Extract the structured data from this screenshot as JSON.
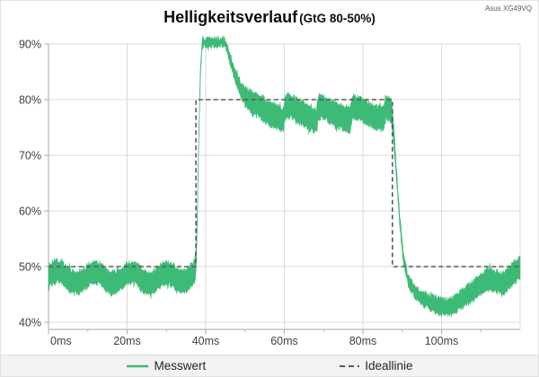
{
  "header": {
    "title": "Helligkeitsverlauf",
    "subtitle": "(GtG 80-50%)",
    "device": "Asus XG49VQ"
  },
  "legend": {
    "items": [
      {
        "label": "Messwert",
        "swatch": "solid-green-line"
      },
      {
        "label": "Ideallinie",
        "swatch": "dashed-gray-line"
      }
    ]
  },
  "colors": {
    "measured": "#3dba76",
    "ideal": "#595959",
    "grid": "#dadada",
    "axis": "#b7b7b7",
    "tick_text": "#404040",
    "legend_bg": "#f2f2f2"
  },
  "chart_data": {
    "type": "line",
    "title": "Helligkeitsverlauf",
    "subtitle": "(GtG 80-50%)",
    "device": "Asus XG49VQ",
    "xlabel": "",
    "ylabel": "",
    "x_unit": "ms",
    "y_unit": "%",
    "xlim": [
      0,
      120
    ],
    "ylim": [
      39,
      91
    ],
    "grid": true,
    "legend_position": "bottom",
    "x_ticks": [
      0,
      20,
      40,
      60,
      80,
      100
    ],
    "x_tick_labels": [
      "0ms",
      "20ms",
      "40ms",
      "60ms",
      "80ms",
      "100ms"
    ],
    "x_minor_ticks": [
      10,
      30,
      50,
      70,
      90,
      110
    ],
    "y_ticks": [
      90,
      80,
      70,
      60,
      50,
      40
    ],
    "y_tick_labels": [
      "90%",
      "80%",
      "70%",
      "60%",
      "50%",
      "40%"
    ],
    "series": [
      {
        "name": "Messwert",
        "style": "noisy-band",
        "color": "#3dba76",
        "noise": 0.5,
        "center_points": [
          [
            0,
            48.2
          ],
          [
            1.2,
            48.9
          ],
          [
            2.5,
            49.2
          ],
          [
            4,
            48.6
          ],
          [
            5.5,
            47.5
          ],
          [
            7,
            46.9
          ],
          [
            8.5,
            47.4
          ],
          [
            10,
            48.4
          ],
          [
            11.5,
            49.1
          ],
          [
            13,
            48.7
          ],
          [
            14.5,
            47.7
          ],
          [
            16,
            46.9
          ],
          [
            17.5,
            47.3
          ],
          [
            19,
            48.3
          ],
          [
            20.5,
            49.0
          ],
          [
            22,
            48.9
          ],
          [
            23.5,
            47.9
          ],
          [
            25,
            47.0
          ],
          [
            26.5,
            47.2
          ],
          [
            28,
            48.1
          ],
          [
            29.5,
            48.8
          ],
          [
            31,
            48.6
          ],
          [
            32.5,
            47.8
          ],
          [
            34,
            47.2
          ],
          [
            35.2,
            47.7
          ],
          [
            36.3,
            48.4
          ],
          [
            37.2,
            49.2
          ],
          [
            37.5,
            50.3
          ],
          [
            37.9,
            60
          ],
          [
            38.3,
            75
          ],
          [
            38.7,
            86
          ],
          [
            39.1,
            89.8
          ],
          [
            39.5,
            90.3
          ],
          [
            44.8,
            90.3
          ],
          [
            45.4,
            89.4
          ],
          [
            46.2,
            87.3
          ],
          [
            47.2,
            85.0
          ],
          [
            48.4,
            82.7
          ],
          [
            49.6,
            81.0
          ],
          [
            51,
            79.9
          ],
          [
            52,
            79.3
          ],
          [
            54,
            78.6
          ],
          [
            56,
            77.6
          ],
          [
            58,
            76.9
          ],
          [
            59.8,
            76.4
          ],
          [
            60.3,
            78.9
          ],
          [
            62.5,
            78.4
          ],
          [
            64.5,
            77.5
          ],
          [
            66.5,
            76.7
          ],
          [
            68.2,
            76.2
          ],
          [
            68.7,
            78.8
          ],
          [
            71,
            78.2
          ],
          [
            73,
            77.3
          ],
          [
            75,
            76.7
          ],
          [
            76.8,
            76.3
          ],
          [
            77.3,
            78.9
          ],
          [
            79.5,
            78.3
          ],
          [
            81.5,
            77.4
          ],
          [
            83.5,
            76.8
          ],
          [
            85.3,
            76.4
          ],
          [
            85.8,
            78.6
          ],
          [
            87.2,
            78.0
          ],
          [
            87.8,
            74.0
          ],
          [
            88.5,
            67.0
          ],
          [
            89.4,
            58.0
          ],
          [
            90.3,
            51.5
          ],
          [
            91.5,
            47.5
          ],
          [
            93,
            45.6
          ],
          [
            95,
            44.4
          ],
          [
            97,
            43.6
          ],
          [
            99,
            43.0
          ],
          [
            101,
            42.7
          ],
          [
            103,
            43.0
          ],
          [
            105,
            44.1
          ],
          [
            107,
            45.2
          ],
          [
            109,
            46.2
          ],
          [
            110.8,
            47.3
          ],
          [
            112.3,
            47.9
          ],
          [
            113.8,
            47.3
          ],
          [
            115.3,
            46.8
          ],
          [
            116.8,
            47.7
          ],
          [
            118.3,
            48.8
          ],
          [
            119.4,
            49.4
          ],
          [
            120,
            49.8
          ]
        ],
        "halfwidth_points": [
          [
            0,
            1.9
          ],
          [
            37.4,
            1.9
          ],
          [
            38.2,
            0.9
          ],
          [
            39.2,
            0.6
          ],
          [
            44.8,
            0.65
          ],
          [
            46.5,
            0.9
          ],
          [
            49,
            1.3
          ],
          [
            52,
            2.0
          ],
          [
            87.4,
            2.0
          ],
          [
            88.4,
            1.0
          ],
          [
            90.5,
            0.8
          ],
          [
            93,
            1.0
          ],
          [
            96,
            1.2
          ],
          [
            100,
            1.35
          ],
          [
            104,
            1.5
          ],
          [
            108,
            1.65
          ],
          [
            113,
            1.8
          ],
          [
            120,
            1.9
          ]
        ]
      },
      {
        "name": "Ideallinie",
        "style": "dashed-step",
        "color": "#595959",
        "points": [
          [
            0,
            50
          ],
          [
            37.5,
            50
          ],
          [
            37.5,
            80
          ],
          [
            87.5,
            80
          ],
          [
            87.5,
            50
          ],
          [
            120,
            50
          ]
        ]
      }
    ]
  }
}
